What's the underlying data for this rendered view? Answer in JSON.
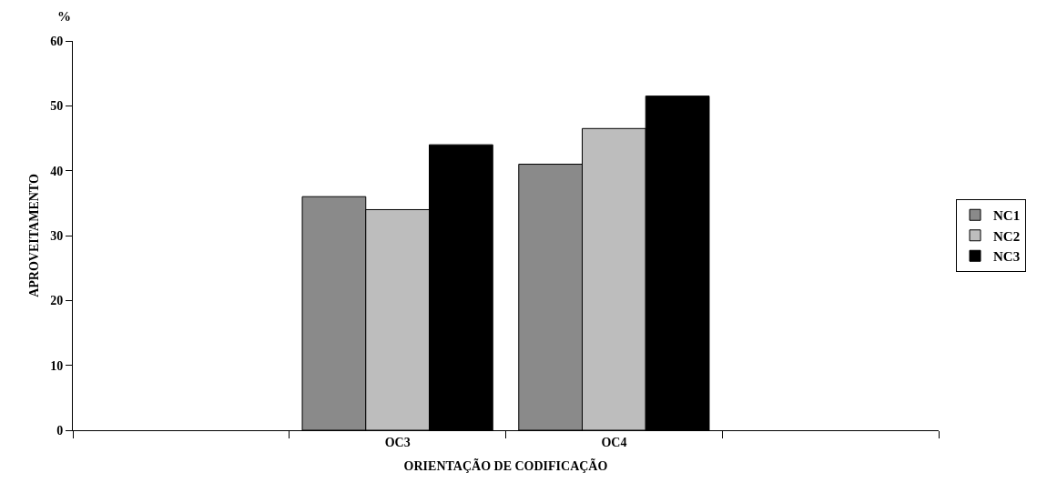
{
  "chart_data": {
    "type": "bar",
    "xlabel": "ORIENTAÇÃO DE CODIFICAÇÃO",
    "ylabel": "APROVEITAMENTO",
    "annotations": [
      "%"
    ],
    "categories": [
      null,
      "OC3",
      "OC4",
      null
    ],
    "series": [
      {
        "name": "NC1",
        "color": "#8a8a8a",
        "values": [
          null,
          36,
          41,
          null
        ]
      },
      {
        "name": "NC2",
        "color": "#bdbdbd",
        "values": [
          null,
          34,
          46.5,
          null
        ]
      },
      {
        "name": "NC3",
        "color": "#000000",
        "values": [
          null,
          44,
          51.5,
          null
        ]
      }
    ],
    "ylim": [
      0,
      60
    ],
    "yticks": [
      0,
      10,
      20,
      30,
      40,
      50,
      60
    ],
    "grid": false,
    "legend": "right"
  }
}
